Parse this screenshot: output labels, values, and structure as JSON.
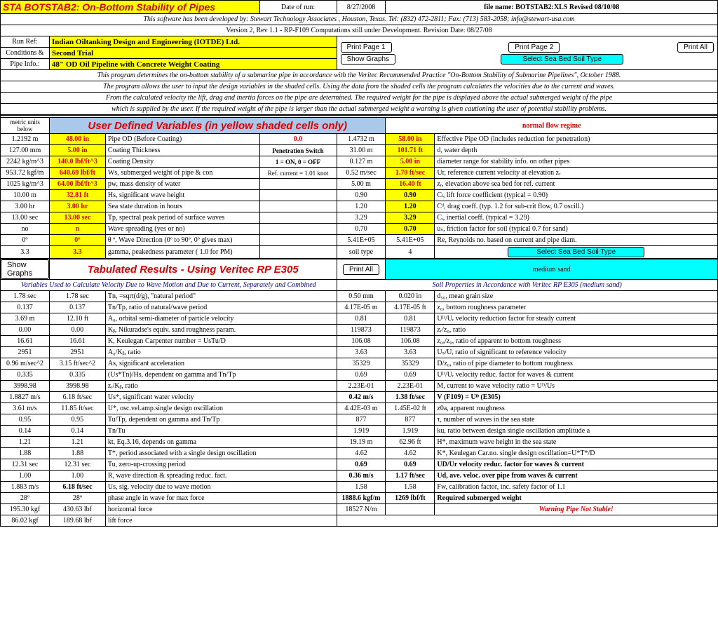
{
  "header": {
    "title": "STA BOTSTAB2: On-Bottom Stability of Pipes",
    "date_lbl": "Date of run:",
    "date": "8/27/2008",
    "file_lbl": "file name: BOTSTAB2:XLS Revised 08/10/08",
    "credit": "This software has been developed by: Stewart Technology Associates , Houston, Texas.  Tel: (832) 472-2811;  Fax: (713) 583-2058; info@stewart-usa.com",
    "version": "Version 2, Rev 1.1 - RP-F109 Computations still under Development.  Revision Date: 08/27/08"
  },
  "run": {
    "ref_lbl": "Run Ref:",
    "ref": "Indian Oiltanking Design and Engineering (IOTDE) Ltd.",
    "cond_lbl": "Conditions &",
    "cond": "Second Trial",
    "pipe_lbl": "Pipe Info.:",
    "pipe": "48\" OD Oil Pipeline with Concrete Weight Coating"
  },
  "btns": {
    "p1": "Print Page 1",
    "p2": "Print Page 2",
    "pa": "Print All",
    "sg": "Show Graphs",
    "soil": "Select Sea Bed Soil Type"
  },
  "desc": [
    "This program determines the on-bottom stability of a submarine pipe in accordance with the Veritec Recommended Practice \"On-Bottom Stability of Submarine Pipelines\", October 1988.",
    "The program allows the user to input the design variables in the shaded cells.  Using the data from the shaded cells the program calculates the velocities due to the current and waves.",
    "From the calculated velocity the lift, drag and inertia forces on the pipe are determined.  The required weight for the pipe is displayed above the actual submerged weight of the pipe",
    "which is supplied by the user.  If the required weight of the pipe is larger  than the actual submerged weight a warning is given cautioning the user of potential stability problems."
  ],
  "sec1": {
    "metric": "metric units below",
    "title": "User Defined Variables (in yellow shaded cells only)",
    "regime": "normal flow regime"
  },
  "udv_left": [
    {
      "m": "1.2192 m",
      "i": "48.00 in",
      "d": "Pipe OD (Before Coating)"
    },
    {
      "m": "127.00 mm",
      "i": "5.00 in",
      "d": "Coating Thickness"
    },
    {
      "m": "2242 kg/m^3",
      "i": "140.0 lbf/ft^3",
      "d": "Coating Density"
    },
    {
      "m": "953.72 kgf/m",
      "i": "640.69 lbf/ft",
      "d": "Ws, submerged weight of pipe & con"
    },
    {
      "m": "1025 kg/m^3",
      "i": "64.00 lbf/ft^3",
      "d": "pw, mass density of water"
    },
    {
      "m": "10.00 m",
      "i": "32.81 ft",
      "d": "Hs, significant wave height"
    },
    {
      "m": "3.00 hr",
      "i": "3.00 hr",
      "d": "Sea state duration in hours"
    },
    {
      "m": "13.00 sec",
      "i": "13.00 sec",
      "d": "Tp, spectral peak period of surface waves"
    },
    {
      "m": "no",
      "i": "n",
      "d": "Wave spreading (yes or no)"
    },
    {
      "m": "0º",
      "i": "0º",
      "d": "θ º, Wave Direction (0º to 90º, 0º gives max)"
    },
    {
      "m": "3.3",
      "i": "3.3",
      "d": "gamma, peakedness parameter ( 1.0 for PM)"
    }
  ],
  "pen": {
    "v": "0.0",
    "t": "Penetration Switch",
    "s": "1 = ON, 0 = OFF",
    "r": "Ref. current = 1.01 knot"
  },
  "udv_right": [
    {
      "m": "1.4732 m",
      "i": "58.00 in",
      "d": "Effective Pipe OD (includes reduction for penetration)"
    },
    {
      "m": "31.00 m",
      "i": "101.71 ft",
      "d": "d, water depth"
    },
    {
      "m": "0.127 m",
      "i": "5.00 in",
      "d": "diameter range for stability info. on other pipes"
    },
    {
      "m": "0.52 m/sec",
      "i": "1.70 ft/sec",
      "d": "Ur, reference current velocity at elevation zᵣ"
    },
    {
      "m": "5.00 m",
      "i": "16.40 ft",
      "d": "zᵣ, elevation above sea bed for ref. current"
    },
    {
      "m": "0.90",
      "i": "0.90",
      "d": "Cₗ, lift force coefficient (typical = 0.90)"
    },
    {
      "m": "1.20",
      "i": "1.20",
      "d": "Cᵈ, drag coeff. (typ. 1.2 for sub-crit flow, 0.7 oscill.)"
    },
    {
      "m": "3.29",
      "i": "3.29",
      "d": "Cᵢ, inertial coeff. (typical = 3.29)"
    },
    {
      "m": "0.70",
      "i": "0.70",
      "d": "uₛ, friction factor for soil (typical 0.7 for sand)"
    },
    {
      "m": "5.41E+05",
      "i": "5.41E+05",
      "d": "Re, Reynolds no. based on current and pipe diam."
    },
    {
      "m": "soil type",
      "i": "4",
      "d": ""
    }
  ],
  "soil_name": "medium sand",
  "sec2": {
    "title": "Tabulated Results - Using Veritec RP E305",
    "sub": "Variables Used to Calculate Velocity Due to Wave Motion and Due to Current, Separately and Combined",
    "sub2": "Soil Properties in Accordance with Veritec RP E305 (medium sand)"
  },
  "res_left": [
    {
      "a": "1.78 sec",
      "b": "1.78 sec",
      "d": "Tn, =sqrt(d/g), \"natural period\""
    },
    {
      "a": "0.137",
      "b": "0.137",
      "d": "Tn/Tp, ratio of natural/wave period"
    },
    {
      "a": "3.69 m",
      "b": "12.10 ft",
      "d": "A₀, orbital semi-diameter of particle velocity"
    },
    {
      "a": "0.00",
      "b": "0.00",
      "d": "Kᵦ, Nikuradse's equiv. sand roughness param."
    },
    {
      "a": "16.61",
      "b": "16.61",
      "d": "K, Keulegan Carpenter number = UsTu/D"
    },
    {
      "a": "2951",
      "b": "2951",
      "d": "A₀/Kᵦ, ratio"
    },
    {
      "a": "0.96 m/sec^2",
      "b": "3.15 ft/sec^2",
      "d": "As, significant acceleration"
    },
    {
      "a": "0.335",
      "b": "0.335",
      "d": "(Us*Tn)/Hs, dependent on gamma and Tn/Tp"
    },
    {
      "a": "3998.98",
      "b": "3998.98",
      "d": "zᵣ/Kᵦ, ratio"
    },
    {
      "a": "1.8827 m/s",
      "b": "6.18 ft/sec",
      "d": "Us*, significant water velocity"
    },
    {
      "a": "3.61 m/s",
      "b": "11.85 ft/sec",
      "d": "U*, osc.vel.amp.single design oscillation"
    },
    {
      "a": "0.95",
      "b": "0.95",
      "d": "Tu/Tp, dependent on gamma and Tn/Tp"
    },
    {
      "a": "0.14",
      "b": "0.14",
      "d": "Tn/Tu"
    },
    {
      "a": "1.21",
      "b": "1.21",
      "d": "kt, Eq.3.16, depends on gamma"
    },
    {
      "a": "1.88",
      "b": "1.88",
      "d": "T*, period associated with a single design oscillation"
    },
    {
      "a": "12.31 sec",
      "b": "12.31 sec",
      "d": "Tu, zero-up-crossing period"
    },
    {
      "a": "1.00",
      "b": "1.00",
      "d": "R, wave direction & spreading reduc. fact."
    },
    {
      "a": "1.883 m/s",
      "b": "6.18 ft/sec",
      "d": "Us, sig. velocity due to wave motion",
      "bold": true
    },
    {
      "a": "28º",
      "b": "28º",
      "d": "phase angle in wave for max force"
    },
    {
      "a": "195.30 kgf",
      "b": "430.63 lbf",
      "d": "horizontal force"
    },
    {
      "a": "86.02 kgf",
      "b": "189.68 lbf",
      "d": "lift force"
    }
  ],
  "res_right": [
    {
      "a": "0.50 mm",
      "b": "0.020 in",
      "d": "d₅₀, mean grain size"
    },
    {
      "a": "4.17E-05 m",
      "b": "4.17E-05 ft",
      "d": "z₀, bottom roughness parameter"
    },
    {
      "a": "0.81",
      "b": "0.81",
      "d": "Uᴰ/Uᵣ velocity reduction factor for steady current"
    },
    {
      "a": "119873",
      "b": "119873",
      "d": "zᵣ/z₀, ratio"
    },
    {
      "a": "106.08",
      "b": "106.08",
      "d": "z₀ₐ/z₀, ratio of apparent to bottom roughness"
    },
    {
      "a": "3.63",
      "b": "3.63",
      "d": "Uₛ/Uᵣ ratio of significant to reference velocity"
    },
    {
      "a": "35329",
      "b": "35329",
      "d": "D/z₀, ratio of pipe diameter to bottom roughness"
    },
    {
      "a": "0.69",
      "b": "0.69",
      "d": "Uᴰ/Uᵣ  velocity reduc. factor for waves & current"
    },
    {
      "a": "2.23E-01",
      "b": "2.23E-01",
      "d": "M, current to wave velocity ratio = Uᴰ/Us"
    },
    {
      "a": "0.42 m/s",
      "b": "1.38 ft/sec",
      "d": "V (F109) = Uᴰ (E305)",
      "bold": true
    },
    {
      "a": "4.42E-03 m",
      "b": "1.45E-02 ft",
      "d": "z0a, apparent roughness"
    },
    {
      "a": "877",
      "b": "877",
      "d": "τ, number of waves in the sea state"
    },
    {
      "a": "1.919",
      "b": "1.919",
      "d": "ku, ratio between design single oscillation amplitude a"
    },
    {
      "a": "19.19 m",
      "b": "62.96 ft",
      "d": "H*, maximum wave height in the sea state"
    },
    {
      "a": "4.62",
      "b": "4.62",
      "d": "K*, Keulegan Car.no. single design oscillation=U*T*/D"
    },
    {
      "a": "0.69",
      "b": "0.69",
      "d": "UD/Ur  velocity reduc. factor for waves & current",
      "bold": true
    },
    {
      "a": "0.36 m/s",
      "b": "1.17 ft/sec",
      "d": "Ud, ave. veloc. over pipe from waves & current",
      "bold": true
    },
    {
      "a": "1.58",
      "b": "1.58",
      "d": "Fw, calibration factor, inc. safety factor of 1.1"
    },
    {
      "a": "1888.6 kgf/m",
      "b": "1269 lbf/ft",
      "d": "Required submerged weight",
      "bold": true
    },
    {
      "a": "18527 N/m",
      "b": "",
      "d": "Warning Pipe Not Stable!",
      "warn": true
    }
  ]
}
